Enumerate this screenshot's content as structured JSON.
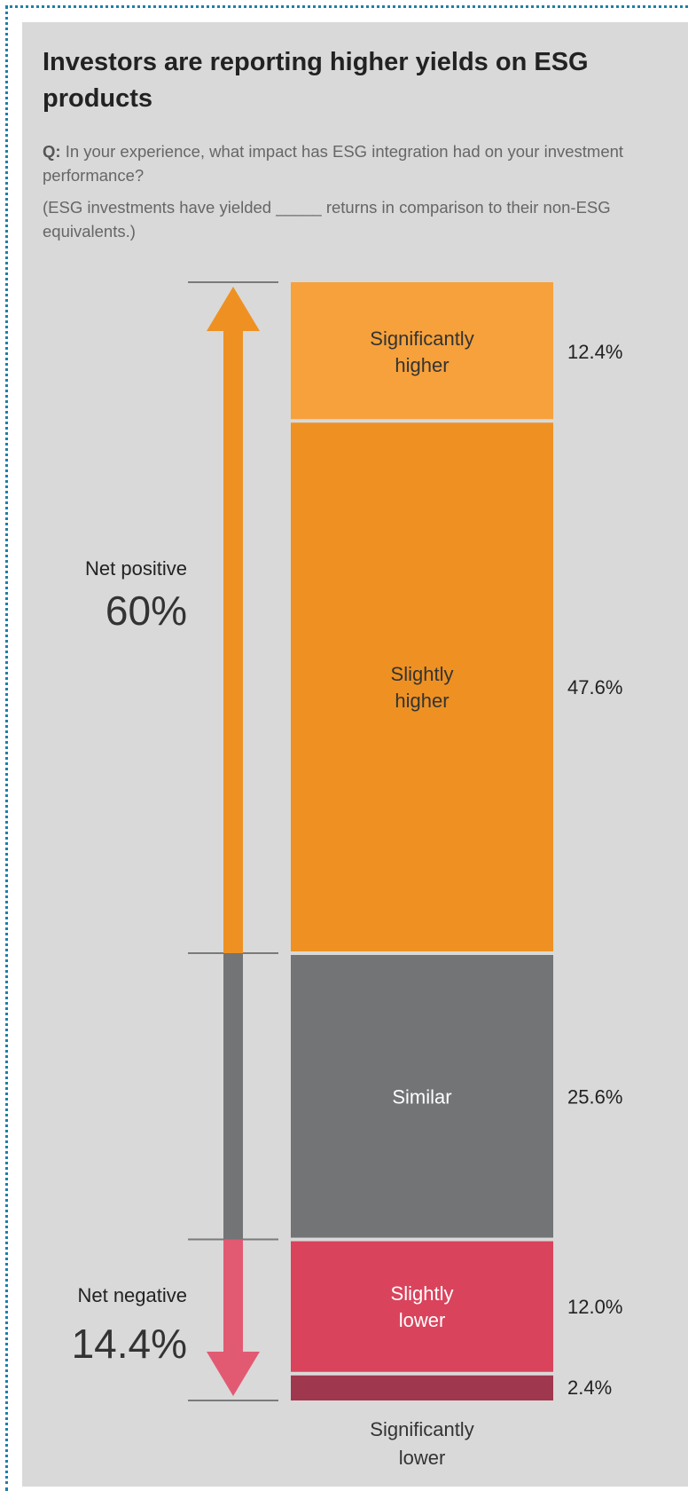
{
  "title": "Investors are reporting higher yields on ESG products",
  "question_prefix": "Q:",
  "question": "In your experience, what impact has ESG integration had on your investment performance?",
  "note": "(ESG investments have yielded _____ returns in comparison to their non-ESG equivalents.)",
  "chart_data": {
    "type": "bar",
    "stacked": true,
    "orientation": "vertical",
    "segments": [
      {
        "label_lines": [
          "Significantly",
          "higher"
        ],
        "value": 12.4,
        "value_label": "12.4%",
        "color": "#f6a13b",
        "text_color": "#333333"
      },
      {
        "label_lines": [
          "Slightly",
          "higher"
        ],
        "value": 47.6,
        "value_label": "47.6%",
        "color": "#ee9122",
        "text_color": "#333333"
      },
      {
        "label_lines": [
          "Similar"
        ],
        "value": 25.6,
        "value_label": "25.6%",
        "color": "#727476",
        "text_color": "#ffffff"
      },
      {
        "label_lines": [
          "Slightly",
          "lower"
        ],
        "value": 12.0,
        "value_label": "12.0%",
        "color": "#da435c",
        "text_color": "#ffffff"
      },
      {
        "label_lines": [
          "Significantly",
          "lower"
        ],
        "value": 2.4,
        "value_label": "2.4%",
        "color": "#9f384e",
        "text_color": "#333333"
      }
    ],
    "net_positive": {
      "label": "Net positive",
      "value": 60,
      "value_label": "60%",
      "color": "#ee9122"
    },
    "net_negative": {
      "label": "Net negative",
      "value": 14.4,
      "value_label": "14.4%",
      "color": "#e25a72"
    },
    "neutral_color": "#727476"
  }
}
